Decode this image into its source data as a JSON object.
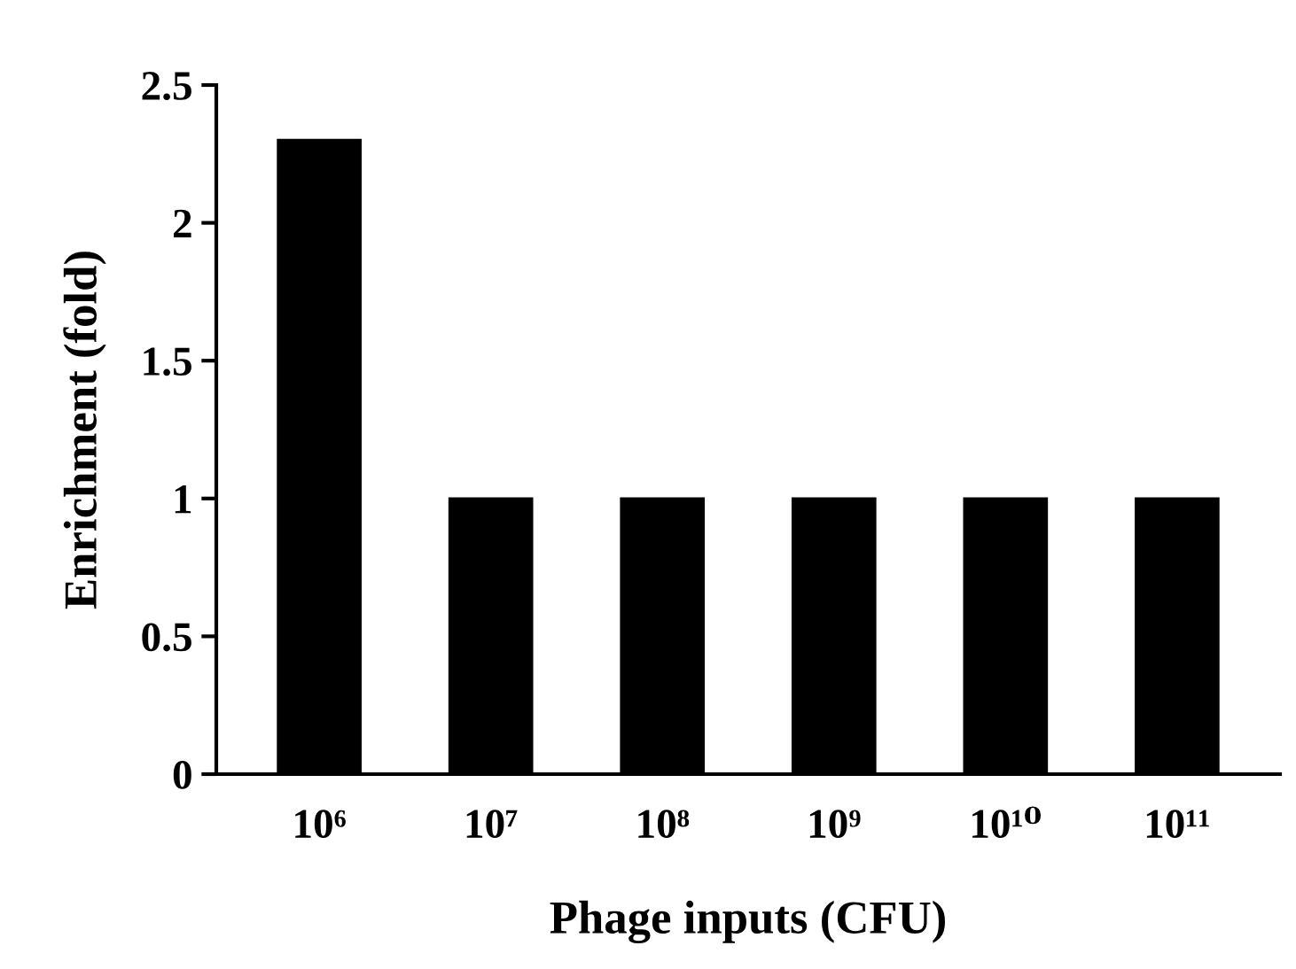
{
  "chart_data": {
    "type": "bar",
    "xlabel": "Phage inputs (CFU)",
    "ylabel": "Enrichment (fold)",
    "categories": [
      "10⁶",
      "10⁷",
      "10⁸",
      "10⁹",
      "10¹⁰",
      "10¹¹"
    ],
    "values": [
      2.3,
      1,
      1,
      1,
      1,
      1
    ],
    "color": "#000000",
    "ylim": [
      0,
      2.5
    ],
    "yticks": [
      0,
      0.5,
      1,
      1.5,
      2,
      2.5
    ],
    "grid": false,
    "legend": false
  }
}
